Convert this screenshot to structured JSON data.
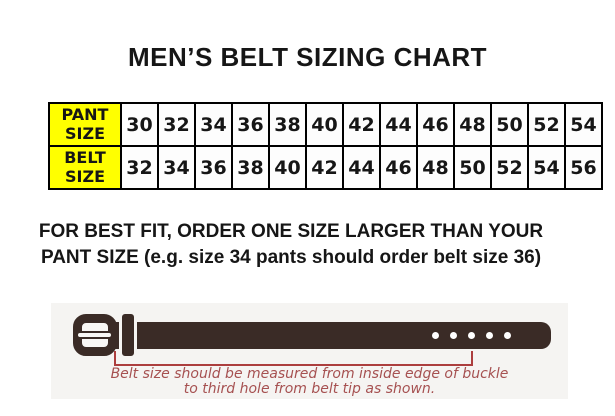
{
  "page": {
    "title": "MEN’S BELT SIZING CHART"
  },
  "size_table": {
    "rows": [
      {
        "header": "PANT SIZE",
        "values": [
          "30",
          "32",
          "34",
          "36",
          "38",
          "40",
          "42",
          "44",
          "46",
          "48",
          "50",
          "52",
          "54"
        ]
      },
      {
        "header": "BELT SIZE",
        "values": [
          "32",
          "34",
          "36",
          "38",
          "40",
          "42",
          "44",
          "46",
          "48",
          "50",
          "52",
          "54",
          "56"
        ]
      }
    ]
  },
  "fit_note": {
    "line1": "FOR BEST FIT, ORDER ONE SIZE LARGER THAN YOUR",
    "line2": "PANT SIZE (e.g. size 34 pants should order belt size 36)"
  },
  "belt_diagram": {
    "hole_count": 5,
    "caption_line1": "Belt size should be measured from inside edge of buckle",
    "caption_line2": "to third hole from belt tip as shown."
  },
  "colors": {
    "highlight_yellow": "#ffff00",
    "table_border_black": "#000000",
    "text_black": "#161616",
    "belt_brown": "#3a2b26",
    "panel_gray": "#f5f4f2",
    "bracket_red": "#ac3e3e",
    "caption_red": "#a65151"
  },
  "chart_data": {
    "type": "table",
    "title": "MEN’S BELT SIZING CHART",
    "row_headers": [
      "PANT SIZE",
      "BELT SIZE"
    ],
    "pant_sizes": [
      30,
      32,
      34,
      36,
      38,
      40,
      42,
      44,
      46,
      48,
      50,
      52,
      54
    ],
    "belt_sizes": [
      32,
      34,
      36,
      38,
      40,
      42,
      44,
      46,
      48,
      50,
      52,
      54,
      56
    ],
    "note": "FOR BEST FIT, ORDER ONE SIZE LARGER THAN YOUR PANT SIZE (e.g. size 34 pants should order belt size 36)",
    "annotation": "Belt size should be measured from inside edge of buckle to third hole from belt tip as shown."
  }
}
